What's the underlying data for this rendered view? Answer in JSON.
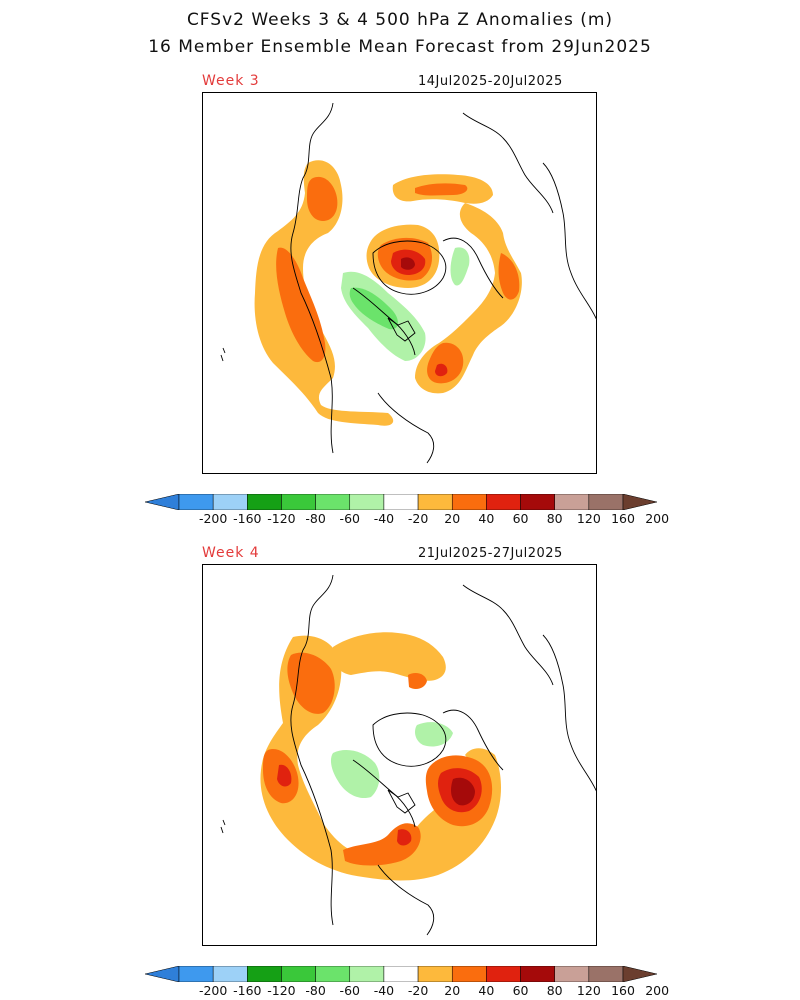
{
  "title_line1": "CFSv2 Weeks 3 & 4 500 hPa Z Anomalies (m)",
  "title_line2": "16 Member Ensemble Mean Forecast from 29Jun2025",
  "panels": [
    {
      "label": "Week 3",
      "dates": "14Jul2025-20Jul2025"
    },
    {
      "label": "Week 4",
      "dates": "21Jul2025-27Jul2025"
    }
  ],
  "colorbar": {
    "levels": [
      "-200",
      "-160",
      "-120",
      "-80",
      "-60",
      "-40",
      "-20",
      "20",
      "40",
      "60",
      "80",
      "120",
      "160",
      "200"
    ],
    "colors": [
      "#2f7fd9",
      "#3e99ee",
      "#9dd1f7",
      "#15a015",
      "#3ac83a",
      "#6be36b",
      "#b0f2a8",
      "#ffffff",
      "#fdb93c",
      "#fa6d0e",
      "#e0220f",
      "#a50a0a",
      "#c9a097",
      "#9a7268",
      "#6b3e2e"
    ]
  },
  "anomaly_colors": {
    "a20": "#fdb93c",
    "a40": "#fa6d0e",
    "a60": "#e0220f",
    "a80": "#a50a0a",
    "n20": "#b0f2a8",
    "n40": "#6be36b"
  }
}
